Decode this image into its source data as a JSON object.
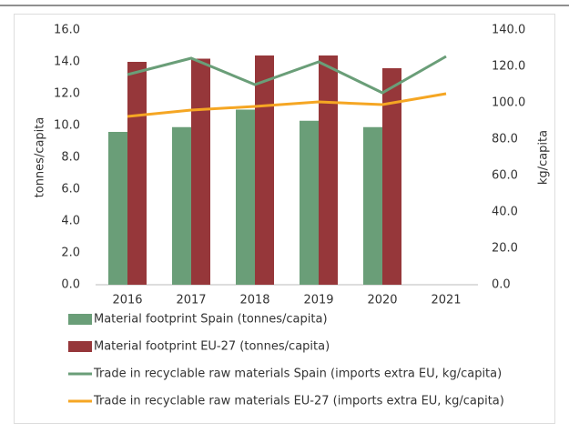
{
  "chart_data": {
    "type": "bar",
    "categories": [
      "2016",
      "2017",
      "2018",
      "2019",
      "2020",
      "2021"
    ],
    "ylabel": "tonnes/capita",
    "y2label": "kg/capita",
    "ylim": [
      0,
      16
    ],
    "yticks": [
      {
        "value": 0,
        "label": "0.0"
      },
      {
        "value": 2,
        "label": "2.0"
      },
      {
        "value": 4,
        "label": "4.0"
      },
      {
        "value": 6,
        "label": "6.0"
      },
      {
        "value": 8,
        "label": "8.0"
      },
      {
        "value": 10,
        "label": "10.0"
      },
      {
        "value": 12,
        "label": "12.0"
      },
      {
        "value": 14,
        "label": "14.0"
      },
      {
        "value": 16,
        "label": "16.0"
      }
    ],
    "y2lim": [
      0,
      140
    ],
    "y2ticks": [
      {
        "value": 0,
        "label": "0.0"
      },
      {
        "value": 20,
        "label": "20.0"
      },
      {
        "value": 40,
        "label": "40.0"
      },
      {
        "value": 60,
        "label": "60.0"
      },
      {
        "value": 80,
        "label": "80.0"
      },
      {
        "value": 100,
        "label": "100.0"
      },
      {
        "value": 120,
        "label": "120.0"
      },
      {
        "value": 140,
        "label": "140.0"
      }
    ],
    "grid": false,
    "legend": "bottom",
    "series": [
      {
        "name": "Material footprint Spain (tonnes/capita)",
        "type": "bar",
        "color": "#6a9e78",
        "values": [
          9.6,
          9.9,
          11.0,
          10.3,
          9.9,
          null
        ]
      },
      {
        "name": "Material footprint EU-27 (tonnes/capita)",
        "type": "bar",
        "color": "#96373a",
        "values": [
          14.0,
          14.2,
          14.4,
          14.4,
          13.6,
          null
        ]
      },
      {
        "name": "Trade in recyclable raw materials Spain (imports extra EU, kg/capita)",
        "type": "line",
        "axis": "y2",
        "color": "#6a9e78",
        "values": [
          115.5,
          124.5,
          110,
          122.5,
          105.5,
          125.5
        ]
      },
      {
        "name": "Trade in recyclable raw materials EU-27 (imports extra EU, kg/capita)",
        "type": "line",
        "axis": "y2",
        "color": "#f5a623",
        "values": [
          92.5,
          96,
          98,
          100.5,
          99,
          105
        ]
      }
    ]
  }
}
